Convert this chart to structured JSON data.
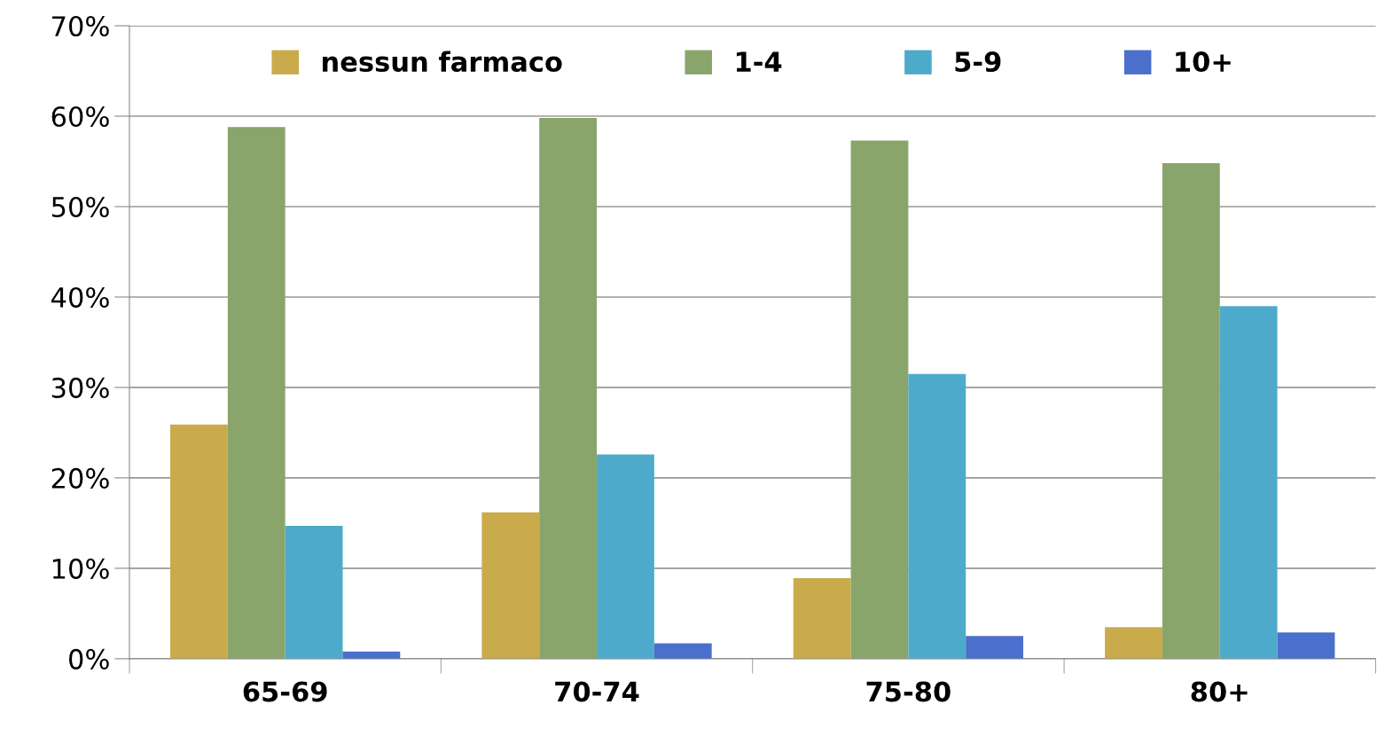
{
  "chart_data": {
    "type": "bar",
    "categories": [
      "65-69",
      "70-74",
      "75-80",
      "80+"
    ],
    "series": [
      {
        "name": "nessun farmaco",
        "color": "#c9ab4c",
        "values": [
          25.9,
          16.2,
          8.9,
          3.5
        ]
      },
      {
        "name": "1-4",
        "color": "#8aa56c",
        "values": [
          58.8,
          59.8,
          57.3,
          54.8
        ]
      },
      {
        "name": "5-9",
        "color": "#4eaacb",
        "values": [
          14.7,
          22.6,
          31.5,
          39.0
        ]
      },
      {
        "name": "10+",
        "color": "#4a6fcc",
        "values": [
          0.8,
          1.7,
          2.5,
          2.9
        ]
      }
    ],
    "ylim": [
      0,
      70
    ],
    "yticks": [
      {
        "value": 0,
        "label": "0%"
      },
      {
        "value": 10,
        "label": "10%"
      },
      {
        "value": 20,
        "label": "20%"
      },
      {
        "value": 30,
        "label": "30%"
      },
      {
        "value": 40,
        "label": "40%"
      },
      {
        "value": 50,
        "label": "50%"
      },
      {
        "value": 60,
        "label": "60%"
      },
      {
        "value": 70,
        "label": "70%"
      }
    ],
    "grid": "y",
    "legend": "top"
  }
}
